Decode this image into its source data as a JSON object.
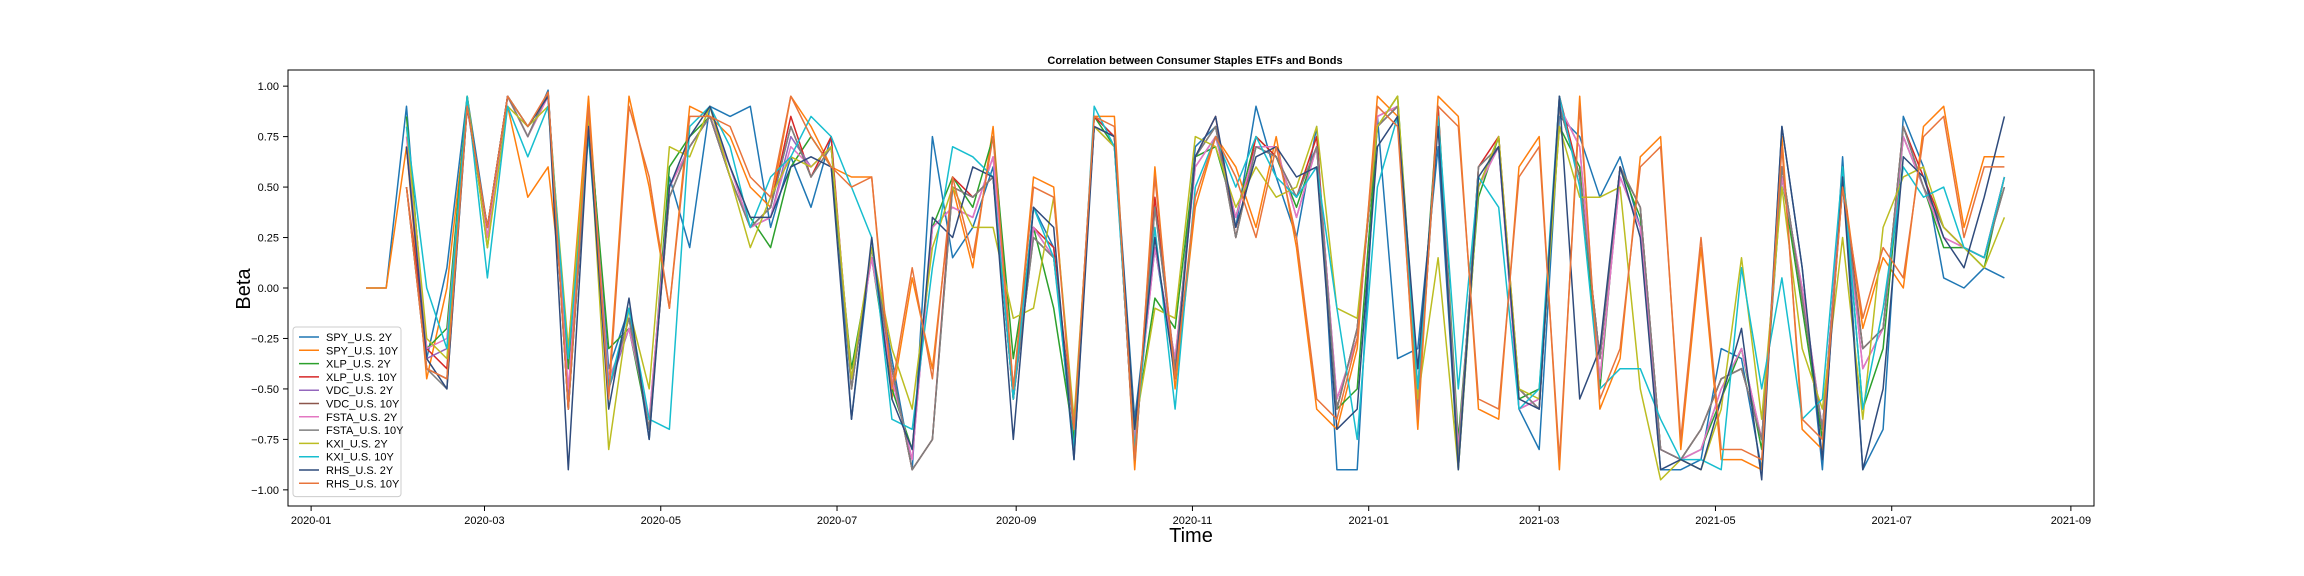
{
  "chart_data": {
    "type": "line",
    "title": "Correlation between Consumer Staples ETFs and Bonds",
    "xlabel": "Time",
    "ylabel": "Beta",
    "xlim": [
      "2019-12-24",
      "2021-09-09"
    ],
    "ylim": [
      -1.08,
      1.08
    ],
    "x_ticks": [
      "2020-01",
      "2020-03",
      "2020-05",
      "2020-07",
      "2020-09",
      "2020-11",
      "2021-01",
      "2021-03",
      "2021-05",
      "2021-07",
      "2021-09"
    ],
    "x_tick_dates": [
      "2020-01-01",
      "2020-03-01",
      "2020-05-01",
      "2020-07-01",
      "2020-09-01",
      "2020-11-01",
      "2021-01-01",
      "2021-03-01",
      "2021-05-01",
      "2021-07-01",
      "2021-09-01"
    ],
    "y_ticks": [
      "1.00",
      "0.75",
      "0.50",
      "0.25",
      "0.00",
      "−0.25",
      "−0.50",
      "−0.75",
      "−1.00"
    ],
    "y_tick_values": [
      1.0,
      0.75,
      0.5,
      0.25,
      0.0,
      -0.25,
      -0.5,
      -0.75,
      -1.0
    ],
    "legend_position": "lower-left",
    "x": [
      "2020-01-20",
      "2020-01-27",
      "2020-02-03",
      "2020-02-10",
      "2020-02-17",
      "2020-02-24",
      "2020-03-02",
      "2020-03-09",
      "2020-03-16",
      "2020-03-23",
      "2020-03-30",
      "2020-04-06",
      "2020-04-13",
      "2020-04-20",
      "2020-04-27",
      "2020-05-04",
      "2020-05-11",
      "2020-05-18",
      "2020-05-25",
      "2020-06-01",
      "2020-06-08",
      "2020-06-15",
      "2020-06-22",
      "2020-06-29",
      "2020-07-06",
      "2020-07-13",
      "2020-07-20",
      "2020-07-27",
      "2020-08-03",
      "2020-08-10",
      "2020-08-17",
      "2020-08-24",
      "2020-08-31",
      "2020-09-07",
      "2020-09-14",
      "2020-09-21",
      "2020-09-28",
      "2020-10-05",
      "2020-10-12",
      "2020-10-19",
      "2020-10-26",
      "2020-11-02",
      "2020-11-09",
      "2020-11-16",
      "2020-11-23",
      "2020-11-30",
      "2020-12-07",
      "2020-12-14",
      "2020-12-21",
      "2020-12-28",
      "2021-01-04",
      "2021-01-11",
      "2021-01-18",
      "2021-01-25",
      "2021-02-01",
      "2021-02-08",
      "2021-02-15",
      "2021-02-22",
      "2021-03-01",
      "2021-03-08",
      "2021-03-15",
      "2021-03-22",
      "2021-03-29",
      "2021-04-05",
      "2021-04-12",
      "2021-04-19",
      "2021-04-26",
      "2021-05-03",
      "2021-05-10",
      "2021-05-17",
      "2021-05-24",
      "2021-05-31",
      "2021-06-07",
      "2021-06-14",
      "2021-06-21",
      "2021-06-28",
      "2021-07-05",
      "2021-07-12",
      "2021-07-19",
      "2021-07-26",
      "2021-08-02",
      "2021-08-09"
    ],
    "series": [
      {
        "name": "SPY_U.S. 2Y",
        "color": "#1f77b4",
        "values": [
          0.0,
          0.0,
          0.9,
          -0.35,
          0.1,
          0.95,
          0.3,
          0.95,
          0.75,
          0.98,
          -0.6,
          0.9,
          -0.4,
          -0.1,
          -0.75,
          0.55,
          0.2,
          0.9,
          0.85,
          0.9,
          0.3,
          0.65,
          0.4,
          0.75,
          -0.65,
          0.2,
          -0.35,
          -0.9,
          0.75,
          0.15,
          0.3,
          0.6,
          -0.55,
          0.4,
          0.2,
          -0.85,
          0.85,
          0.75,
          -0.65,
          0.2,
          -0.4,
          0.7,
          0.8,
          0.3,
          0.9,
          0.55,
          0.25,
          0.8,
          -0.9,
          -0.9,
          0.85,
          -0.35,
          -0.3,
          0.7,
          -0.9,
          0.5,
          0.75,
          -0.6,
          -0.8,
          0.85,
          0.75,
          0.45,
          0.65,
          0.3,
          -0.9,
          -0.9,
          -0.85,
          -0.3,
          -0.35,
          -0.9,
          0.8,
          0.1,
          -0.9,
          0.65,
          -0.9,
          -0.7,
          0.85,
          0.6,
          0.05,
          0.0,
          0.1,
          0.05
        ]
      },
      {
        "name": "SPY_U.S. 10Y",
        "color": "#ff7f0e",
        "values": [
          0.0,
          0.0,
          0.7,
          -0.45,
          0.0,
          0.9,
          0.25,
          0.9,
          0.45,
          0.6,
          -0.3,
          0.95,
          -0.5,
          0.95,
          0.5,
          -0.1,
          0.9,
          0.85,
          0.75,
          0.5,
          0.4,
          0.95,
          0.8,
          0.6,
          0.55,
          0.55,
          -0.55,
          0.05,
          -0.4,
          0.5,
          0.1,
          0.8,
          -0.5,
          0.55,
          0.5,
          -0.75,
          0.85,
          0.85,
          -0.9,
          0.6,
          -0.5,
          0.4,
          0.75,
          0.6,
          0.3,
          0.75,
          0.2,
          -0.6,
          -0.7,
          -0.3,
          0.95,
          0.85,
          -0.7,
          0.95,
          0.85,
          -0.6,
          -0.65,
          0.6,
          0.75,
          -0.9,
          0.95,
          -0.6,
          -0.35,
          0.65,
          0.75,
          -0.8,
          0.2,
          -0.85,
          -0.85,
          -0.9,
          0.75,
          -0.7,
          -0.8,
          0.55,
          -0.2,
          0.15,
          0.0,
          0.8,
          0.9,
          0.3,
          0.65,
          0.65
        ]
      },
      {
        "name": "XLP_U.S. 2Y",
        "color": "#2ca02c",
        "values": [
          null,
          null,
          0.85,
          -0.3,
          -0.2,
          0.95,
          0.2,
          0.95,
          0.8,
          0.95,
          -0.4,
          0.85,
          -0.3,
          -0.2,
          -0.7,
          0.6,
          0.75,
          0.85,
          0.6,
          0.35,
          0.2,
          0.6,
          0.75,
          0.6,
          -0.4,
          0.15,
          -0.5,
          -0.8,
          0.3,
          0.55,
          0.4,
          0.75,
          -0.35,
          0.3,
          -0.1,
          -0.75,
          0.85,
          0.7,
          -0.7,
          -0.05,
          -0.2,
          0.65,
          0.7,
          0.35,
          0.75,
          0.65,
          0.4,
          0.7,
          -0.6,
          -0.5,
          0.8,
          0.95,
          -0.5,
          0.9,
          -0.75,
          0.45,
          0.75,
          -0.55,
          -0.5,
          0.8,
          0.6,
          -0.5,
          0.6,
          0.35,
          -0.8,
          -0.85,
          -0.8,
          -0.55,
          -0.3,
          -0.8,
          0.55,
          -0.1,
          -0.75,
          0.6,
          -0.6,
          -0.3,
          0.75,
          0.5,
          0.2,
          0.2,
          0.1,
          0.55
        ]
      },
      {
        "name": "XLP_U.S. 10Y",
        "color": "#d62728",
        "values": [
          null,
          null,
          0.5,
          -0.3,
          -0.4,
          0.9,
          0.3,
          0.95,
          0.75,
          0.97,
          -0.6,
          0.8,
          -0.5,
          -0.15,
          -0.7,
          0.5,
          0.7,
          0.85,
          0.55,
          0.3,
          0.4,
          0.85,
          0.55,
          0.75,
          -0.5,
          0.2,
          -0.4,
          -0.9,
          -0.75,
          0.55,
          0.45,
          0.55,
          -0.55,
          0.3,
          0.2,
          -0.7,
          0.85,
          0.75,
          -0.85,
          0.45,
          -0.4,
          0.65,
          0.85,
          0.25,
          0.75,
          0.65,
          0.45,
          0.75,
          -0.6,
          -0.2,
          0.8,
          0.9,
          -0.6,
          0.9,
          -0.85,
          0.6,
          0.75,
          -0.5,
          -0.6,
          0.95,
          0.55,
          -0.35,
          0.6,
          0.4,
          -0.8,
          -0.85,
          -0.7,
          -0.45,
          -0.4,
          -0.75,
          0.6,
          -0.05,
          -0.7,
          0.55,
          -0.3,
          -0.2,
          0.8,
          0.55,
          0.3,
          0.2,
          0.15,
          0.55
        ]
      },
      {
        "name": "VDC_U.S. 2Y",
        "color": "#9467bd",
        "values": [
          null,
          null,
          0.7,
          -0.35,
          -0.3,
          0.9,
          0.25,
          0.95,
          0.75,
          0.95,
          -0.55,
          0.85,
          -0.5,
          -0.2,
          -0.65,
          0.5,
          0.7,
          0.85,
          0.6,
          0.3,
          0.35,
          0.75,
          0.6,
          0.7,
          -0.45,
          0.15,
          -0.45,
          -0.85,
          0.3,
          0.4,
          0.35,
          0.65,
          -0.5,
          0.3,
          0.15,
          -0.7,
          0.8,
          0.7,
          -0.75,
          0.2,
          -0.35,
          0.6,
          0.75,
          0.35,
          0.7,
          0.7,
          0.35,
          0.7,
          -0.55,
          -0.25,
          0.85,
          0.9,
          -0.5,
          0.85,
          -0.8,
          0.5,
          0.7,
          -0.6,
          -0.55,
          0.9,
          0.7,
          -0.45,
          0.55,
          0.3,
          -0.8,
          -0.85,
          -0.8,
          -0.5,
          -0.3,
          -0.75,
          0.55,
          0.0,
          -0.7,
          0.55,
          -0.4,
          -0.2,
          0.75,
          0.5,
          0.25,
          0.2,
          0.15,
          0.55
        ]
      },
      {
        "name": "VDC_U.S. 10Y",
        "color": "#8c564b",
        "values": [
          null,
          null,
          0.5,
          -0.4,
          -0.45,
          0.9,
          0.3,
          0.95,
          0.75,
          0.97,
          -0.6,
          0.8,
          -0.5,
          -0.15,
          -0.7,
          0.45,
          0.7,
          0.85,
          0.55,
          0.3,
          0.4,
          0.8,
          0.55,
          0.7,
          -0.5,
          0.2,
          -0.4,
          -0.9,
          -0.75,
          0.5,
          0.45,
          0.55,
          -0.55,
          0.25,
          0.15,
          -0.7,
          0.8,
          0.75,
          -0.85,
          0.4,
          -0.4,
          0.65,
          0.8,
          0.25,
          0.7,
          0.65,
          0.45,
          0.7,
          -0.6,
          -0.2,
          0.8,
          0.9,
          -0.6,
          0.85,
          -0.85,
          0.6,
          0.7,
          -0.5,
          -0.6,
          0.9,
          0.55,
          -0.35,
          0.6,
          0.4,
          -0.8,
          -0.85,
          -0.7,
          -0.45,
          -0.4,
          -0.75,
          0.6,
          -0.05,
          -0.7,
          0.5,
          -0.3,
          -0.2,
          0.8,
          0.5,
          0.3,
          0.2,
          0.15,
          0.5
        ]
      },
      {
        "name": "FSTA_U.S. 2Y",
        "color": "#e377c2",
        "values": [
          null,
          null,
          0.75,
          -0.3,
          -0.25,
          0.9,
          0.25,
          0.95,
          0.75,
          0.95,
          -0.5,
          0.85,
          -0.45,
          -0.2,
          -0.65,
          0.5,
          0.7,
          0.85,
          0.6,
          0.3,
          0.35,
          0.7,
          0.6,
          0.7,
          -0.45,
          0.15,
          -0.45,
          -0.85,
          0.3,
          0.4,
          0.35,
          0.65,
          -0.5,
          0.3,
          0.15,
          -0.7,
          0.8,
          0.7,
          -0.75,
          0.2,
          -0.35,
          0.6,
          0.75,
          0.35,
          0.7,
          0.7,
          0.35,
          0.7,
          -0.55,
          -0.25,
          0.85,
          0.9,
          -0.5,
          0.85,
          -0.8,
          0.5,
          0.7,
          -0.6,
          -0.55,
          0.9,
          0.7,
          -0.45,
          0.55,
          0.3,
          -0.8,
          -0.85,
          -0.8,
          -0.5,
          -0.3,
          -0.75,
          0.55,
          0.0,
          -0.7,
          0.55,
          -0.4,
          -0.2,
          0.75,
          0.5,
          0.25,
          0.2,
          0.15,
          0.55
        ]
      },
      {
        "name": "FSTA_U.S. 10Y",
        "color": "#7f7f7f",
        "values": [
          null,
          null,
          0.5,
          -0.4,
          -0.5,
          0.9,
          0.3,
          0.95,
          0.75,
          0.97,
          -0.6,
          0.8,
          -0.5,
          -0.15,
          -0.7,
          0.45,
          0.7,
          0.85,
          0.55,
          0.3,
          0.4,
          0.8,
          0.55,
          0.7,
          -0.5,
          0.2,
          -0.4,
          -0.9,
          -0.75,
          0.5,
          0.45,
          0.55,
          -0.55,
          0.25,
          0.15,
          -0.7,
          0.8,
          0.75,
          -0.85,
          0.4,
          -0.4,
          0.65,
          0.8,
          0.25,
          0.7,
          0.65,
          0.45,
          0.7,
          -0.6,
          -0.2,
          0.8,
          0.9,
          -0.6,
          0.85,
          -0.85,
          0.6,
          0.7,
          -0.5,
          -0.6,
          0.9,
          0.55,
          -0.35,
          0.6,
          0.4,
          -0.8,
          -0.85,
          -0.7,
          -0.45,
          -0.4,
          -0.75,
          0.6,
          -0.05,
          -0.7,
          0.5,
          -0.3,
          -0.2,
          0.8,
          0.5,
          0.3,
          0.2,
          0.15,
          0.5
        ]
      },
      {
        "name": "KXI_U.S. 2Y",
        "color": "#bcbd22",
        "values": [
          null,
          null,
          0.8,
          -0.25,
          -0.35,
          0.95,
          0.2,
          0.9,
          0.8,
          0.9,
          -0.3,
          0.85,
          -0.8,
          -0.1,
          -0.5,
          0.7,
          0.65,
          0.9,
          0.55,
          0.2,
          0.45,
          0.65,
          0.6,
          0.7,
          -0.45,
          0.2,
          -0.3,
          -0.6,
          0.2,
          0.5,
          0.3,
          0.3,
          -0.15,
          -0.1,
          0.45,
          -0.65,
          0.8,
          0.7,
          -0.7,
          -0.1,
          -0.15,
          0.75,
          0.7,
          0.4,
          0.6,
          0.45,
          0.5,
          0.8,
          -0.1,
          -0.15,
          0.8,
          0.95,
          -0.55,
          0.15,
          -0.9,
          0.5,
          0.75,
          -0.5,
          -0.55,
          0.8,
          0.45,
          0.45,
          0.5,
          -0.5,
          -0.95,
          -0.85,
          -0.9,
          -0.6,
          0.15,
          -0.65,
          0.5,
          -0.3,
          -0.6,
          0.25,
          -0.65,
          0.3,
          0.55,
          0.6,
          0.3,
          0.2,
          0.1,
          0.35
        ]
      },
      {
        "name": "KXI_U.S. 10Y",
        "color": "#17becf",
        "values": [
          null,
          null,
          0.8,
          0.0,
          -0.3,
          0.95,
          0.05,
          0.9,
          0.65,
          0.9,
          -0.35,
          0.75,
          -0.5,
          -0.1,
          -0.65,
          -0.7,
          0.8,
          0.9,
          0.7,
          0.3,
          0.55,
          0.65,
          0.85,
          0.75,
          0.5,
          0.25,
          -0.65,
          -0.7,
          0.1,
          0.7,
          0.65,
          0.55,
          -0.55,
          0.4,
          0.15,
          -0.8,
          0.9,
          0.7,
          -0.8,
          0.3,
          -0.6,
          0.5,
          0.75,
          0.5,
          0.75,
          0.55,
          0.45,
          0.6,
          -0.1,
          -0.75,
          0.5,
          0.85,
          -0.5,
          0.85,
          -0.5,
          0.55,
          0.4,
          -0.6,
          -0.5,
          0.95,
          0.5,
          -0.5,
          -0.4,
          -0.4,
          -0.65,
          -0.85,
          -0.85,
          -0.9,
          0.1,
          -0.5,
          0.05,
          -0.65,
          -0.55,
          0.6,
          -0.6,
          -0.1,
          0.6,
          0.45,
          0.5,
          0.2,
          0.15,
          0.55
        ]
      },
      {
        "name": "RHS_U.S. 2Y",
        "color": "#2f4b7c",
        "values": [
          null,
          null,
          0.7,
          -0.35,
          -0.5,
          0.9,
          0.3,
          0.95,
          0.8,
          0.95,
          -0.9,
          0.8,
          -0.6,
          -0.05,
          -0.75,
          0.5,
          0.75,
          0.9,
          0.6,
          0.35,
          0.35,
          0.6,
          0.65,
          0.6,
          -0.65,
          0.25,
          -0.55,
          -0.8,
          0.35,
          0.25,
          0.6,
          0.55,
          -0.75,
          0.4,
          0.3,
          -0.85,
          0.8,
          0.75,
          -0.7,
          0.25,
          -0.45,
          0.65,
          0.85,
          0.3,
          0.65,
          0.7,
          0.55,
          0.6,
          -0.7,
          -0.6,
          0.7,
          0.85,
          -0.4,
          0.8,
          -0.9,
          0.55,
          0.7,
          -0.55,
          -0.6,
          0.95,
          -0.55,
          -0.3,
          0.6,
          0.25,
          -0.9,
          -0.85,
          -0.9,
          -0.55,
          -0.2,
          -0.95,
          0.8,
          0.1,
          -0.85,
          0.55,
          -0.9,
          -0.5,
          0.65,
          0.55,
          0.25,
          0.1,
          0.45,
          0.85
        ]
      },
      {
        "name": "RHS_U.S. 10Y",
        "color": "#e8743b",
        "values": [
          null,
          null,
          0.5,
          -0.4,
          -0.45,
          0.9,
          0.3,
          0.95,
          0.8,
          0.97,
          -0.6,
          0.9,
          -0.55,
          0.9,
          0.55,
          -0.1,
          0.85,
          0.85,
          0.8,
          0.55,
          0.45,
          0.95,
          0.75,
          0.6,
          0.5,
          0.55,
          -0.5,
          0.1,
          -0.45,
          0.55,
          0.15,
          0.75,
          -0.5,
          0.5,
          0.45,
          -0.7,
          0.85,
          0.8,
          -0.85,
          0.55,
          -0.45,
          0.45,
          0.75,
          0.55,
          0.25,
          0.7,
          0.25,
          -0.55,
          -0.65,
          -0.25,
          0.9,
          0.8,
          -0.65,
          0.9,
          0.8,
          -0.55,
          -0.6,
          0.55,
          0.7,
          -0.85,
          0.9,
          -0.55,
          -0.3,
          0.6,
          0.7,
          -0.75,
          0.25,
          -0.8,
          -0.8,
          -0.85,
          0.7,
          -0.65,
          -0.75,
          0.5,
          -0.15,
          0.2,
          0.05,
          0.75,
          0.85,
          0.25,
          0.6,
          0.6
        ]
      }
    ]
  }
}
